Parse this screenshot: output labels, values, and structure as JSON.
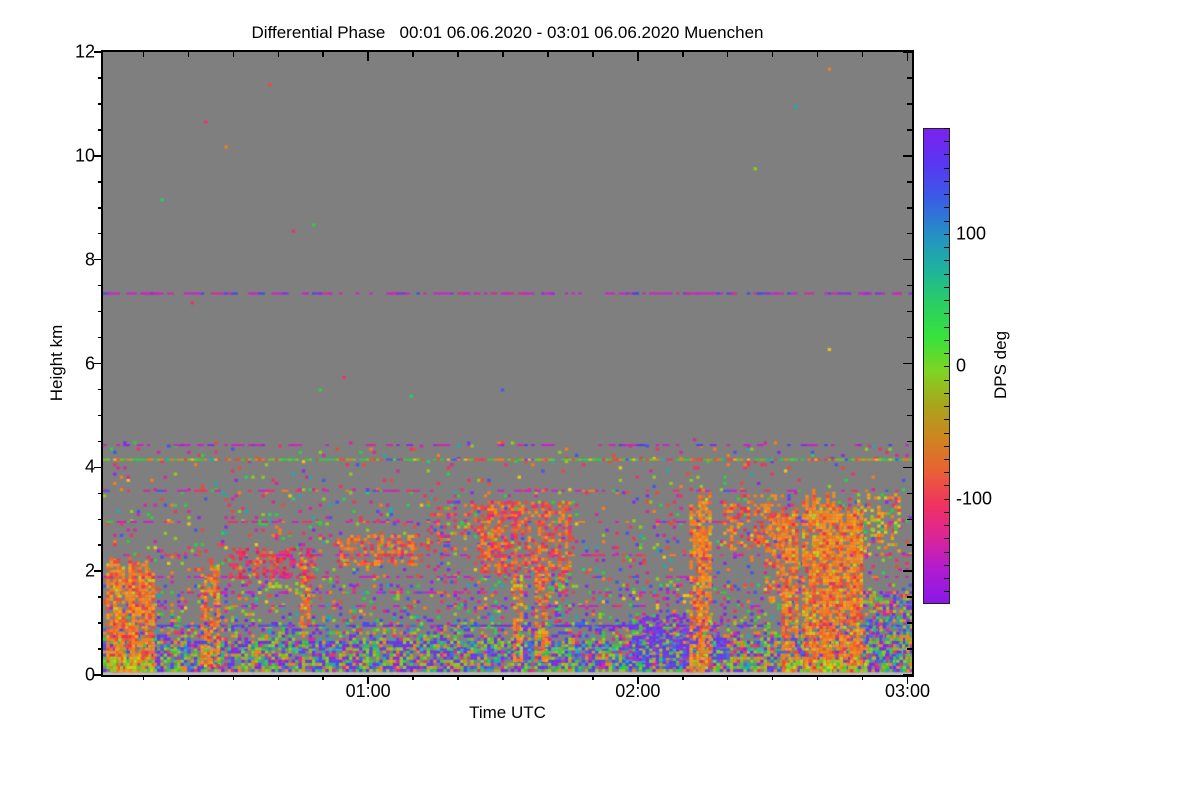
{
  "chart_data": {
    "type": "heatmap",
    "title": "Differential Phase   00:01 06.06.2020 - 03:01 06.06.2020 Muenchen",
    "xlabel": "Time UTC",
    "ylabel": "Height km",
    "time_start": "00:01 06.06.2020",
    "time_end": "03:01 06.06.2020",
    "station": "Muenchen",
    "x_span": 180,
    "x_ticks": [
      {
        "label": "01:00",
        "t": 59
      },
      {
        "label": "02:00",
        "t": 119
      },
      {
        "label": "03:00",
        "t": 179
      }
    ],
    "x_minor_start": 9,
    "x_minor_step": 10,
    "y_max": 12,
    "y_ticks": [
      0,
      2,
      4,
      6,
      8,
      10,
      12
    ],
    "y_major_step": 2,
    "y_minor_step": 0.5,
    "grid_on": false,
    "plot_bg": "#7F7F7F",
    "seed": 7,
    "grid_cols": 240,
    "grid_rows": 200,
    "colorbar": {
      "label": "DPS deg",
      "position": "right",
      "value_range": [
        -178,
        180
      ],
      "minor_step": 10,
      "major_ticks": [
        {
          "label": "100",
          "value": 100
        },
        {
          "label": "0",
          "value": 0
        },
        {
          "label": "-100",
          "value": -100
        }
      ],
      "gradient": [
        [
          0.0,
          "#7B22EE"
        ],
        [
          0.07,
          "#5A35F2"
        ],
        [
          0.145,
          "#3A5BE6"
        ],
        [
          0.226,
          "#2492C4"
        ],
        [
          0.3,
          "#1FB49A"
        ],
        [
          0.37,
          "#2ACF62"
        ],
        [
          0.44,
          "#38E23C"
        ],
        [
          0.511,
          "#7FD424"
        ],
        [
          0.58,
          "#A8A61C"
        ],
        [
          0.655,
          "#CE8420"
        ],
        [
          0.72,
          "#E96233"
        ],
        [
          0.797,
          "#F03064"
        ],
        [
          0.86,
          "#DC2596"
        ],
        [
          0.93,
          "#B01BD0"
        ],
        [
          1.0,
          "#8A18E8"
        ]
      ]
    },
    "palettes": {
      "rain": [
        [
          "#F57E1E",
          5
        ],
        [
          "#EF8F28",
          4
        ],
        [
          "#F2642E",
          3
        ],
        [
          "#F0A21C",
          2
        ],
        [
          "#EE4A3A",
          2
        ],
        [
          "#E83158",
          1
        ],
        [
          "#BFCE1E",
          1
        ]
      ],
      "yellowgreen": [
        [
          "#9ACD21",
          4
        ],
        [
          "#6FD428",
          3
        ],
        [
          "#C8D21E",
          2
        ],
        [
          "#3BD23B",
          2
        ],
        [
          "#EFA21C",
          1
        ]
      ],
      "low": [
        [
          "#7B2BE8",
          5
        ],
        [
          "#5544EE",
          3
        ],
        [
          "#3D6BE0",
          2
        ],
        [
          "#22AAB0",
          2
        ],
        [
          "#33CC44",
          3
        ],
        [
          "#8FCC22",
          4
        ],
        [
          "#AAAA22",
          2
        ],
        [
          "#EE8822",
          2
        ],
        [
          "#D22AA0",
          2
        ],
        [
          "#EE3366",
          1
        ],
        [
          "#F57E1E",
          1
        ]
      ],
      "mixlow": [
        [
          "#8A2BE8",
          3
        ],
        [
          "#4455EE",
          2
        ],
        [
          "#22AAB0",
          1
        ],
        [
          "#33CC44",
          2
        ],
        [
          "#8FCC22",
          2
        ],
        [
          "#EE3366",
          2
        ],
        [
          "#D22AA0",
          2
        ],
        [
          "#F57E1E",
          2
        ],
        [
          "#EE4A3A",
          1
        ],
        [
          "#F2C21E",
          1
        ]
      ],
      "mix": [
        [
          "#EE3366",
          3
        ],
        [
          "#D22AA0",
          3
        ],
        [
          "#F57E1E",
          2
        ],
        [
          "#EE4A3A",
          2
        ],
        [
          "#33CC44",
          2
        ],
        [
          "#8FCC22",
          2
        ],
        [
          "#22AAB0",
          1
        ],
        [
          "#4455EE",
          2
        ],
        [
          "#8A2BE8",
          2
        ],
        [
          "#F2C21E",
          1
        ],
        [
          "#2ACF62",
          1
        ]
      ],
      "pink": [
        [
          "#EE3366",
          4
        ],
        [
          "#E8225E",
          3
        ],
        [
          "#F0433C",
          2
        ],
        [
          "#D22AA0",
          2
        ],
        [
          "#F0622F",
          1
        ],
        [
          "#EF8F28",
          1
        ]
      ],
      "orange": [
        [
          "#F57E1E",
          4
        ],
        [
          "#EF8F28",
          3
        ],
        [
          "#F2642E",
          3
        ],
        [
          "#EE4A3A",
          2
        ],
        [
          "#E83158",
          1
        ],
        [
          "#F0A21C",
          1
        ],
        [
          "#EE3366",
          1
        ]
      ],
      "pinkorange": [
        [
          "#EE3366",
          3
        ],
        [
          "#F2642E",
          2
        ],
        [
          "#EE4A3A",
          2
        ],
        [
          "#D22AA0",
          2
        ],
        [
          "#F57E1E",
          2
        ],
        [
          "#8FCC22",
          1
        ],
        [
          "#33CC44",
          1
        ],
        [
          "#4455EE",
          1
        ]
      ],
      "orangepink": [
        [
          "#F57E1E",
          4
        ],
        [
          "#F2642E",
          3
        ],
        [
          "#EE4A3A",
          3
        ],
        [
          "#EE3366",
          2
        ],
        [
          "#EF8F28",
          2
        ],
        [
          "#E83158",
          1
        ],
        [
          "#D22AA0",
          1
        ]
      ],
      "orangeyellow": [
        [
          "#F57E1E",
          3
        ],
        [
          "#EFA21C",
          3
        ],
        [
          "#C8D21E",
          2
        ],
        [
          "#8FCC22",
          2
        ],
        [
          "#EE4A3A",
          1
        ],
        [
          "#33CC44",
          1
        ]
      ],
      "purpdense": [
        [
          "#7B2BE8",
          5
        ],
        [
          "#5544EE",
          4
        ],
        [
          "#8833EE",
          3
        ],
        [
          "#3D6BE0",
          2
        ],
        [
          "#33CC44",
          1
        ],
        [
          "#8FCC22",
          1
        ],
        [
          "#D22AA0",
          1
        ]
      ],
      "magenta": [
        [
          "#CC22CC",
          5
        ],
        [
          "#8A2BE8",
          2
        ],
        [
          "#D22AA0",
          2
        ],
        [
          "#4444EE",
          1
        ]
      ],
      "magmix": [
        [
          "#CC22CC",
          4
        ],
        [
          "#D22AA0",
          2
        ],
        [
          "#EE3366",
          2
        ],
        [
          "#33CC44",
          1
        ],
        [
          "#4455EE",
          1
        ],
        [
          "#F57E1E",
          1
        ]
      ],
      "redmag": [
        [
          "#EE3366",
          3
        ],
        [
          "#CC22CC",
          3
        ],
        [
          "#EE4A3A",
          2
        ],
        [
          "#D22AA0",
          2
        ],
        [
          "#F57E1E",
          1
        ]
      ],
      "greenline": [
        [
          "#33CC44",
          4
        ],
        [
          "#6FCC22",
          3
        ],
        [
          "#EE4A3A",
          2
        ],
        [
          "#F57E1E",
          2
        ],
        [
          "#4455EE",
          1
        ],
        [
          "#F2C21E",
          1
        ],
        [
          "#EE3366",
          1
        ],
        [
          "#22AAB0",
          1
        ]
      ],
      "purpline": [
        [
          "#7B2BE8",
          4
        ],
        [
          "#5544EE",
          3
        ],
        [
          "#3D6BE0",
          2
        ],
        [
          "#D22AA0",
          1
        ],
        [
          "#33CC44",
          1
        ]
      ],
      "cyanline": [
        [
          "#22BBCC",
          3
        ],
        [
          "#4455EE",
          2
        ],
        [
          "#33CC44",
          2
        ],
        [
          "#8A2BE8",
          2
        ],
        [
          "#8FCC22",
          1
        ]
      ]
    },
    "features": [
      {
        "kind": "strip",
        "t0": 0,
        "t1": 180,
        "h0": 0,
        "h1": 0.055,
        "color": "#BDBDBD"
      },
      {
        "kind": "speckle",
        "t0": 0,
        "t1": 180,
        "h0": 0.055,
        "h1": 0.6,
        "density": 0.8,
        "palette": "low"
      },
      {
        "kind": "speckle",
        "t0": 0,
        "t1": 180,
        "h0": 0.6,
        "h1": 1.2,
        "density": 0.55,
        "palette": "low",
        "fade": true
      },
      {
        "kind": "speckle",
        "t0": 0,
        "t1": 180,
        "h0": 1.2,
        "h1": 1.7,
        "density": 0.18,
        "palette": "mixlow"
      },
      {
        "kind": "speckle",
        "t0": 0,
        "t1": 180,
        "h0": 1.7,
        "h1": 2.7,
        "density": 0.11,
        "palette": "mix"
      },
      {
        "kind": "speckle",
        "t0": 0,
        "t1": 180,
        "h0": 2.7,
        "h1": 3.6,
        "density": 0.09,
        "palette": "mix"
      },
      {
        "kind": "speckle",
        "t0": 0,
        "t1": 180,
        "h0": 3.6,
        "h1": 4.45,
        "density": 0.05,
        "palette": "mix"
      },
      {
        "kind": "speckle",
        "t0": 0,
        "t1": 180,
        "h0": 4.5,
        "h1": 11.9,
        "density": 0.0005,
        "palette": "mix"
      },
      {
        "kind": "hline",
        "t0": 0,
        "t1": 180,
        "h": 7.32,
        "density": 0.5,
        "palette": "magenta"
      },
      {
        "kind": "hline",
        "t0": 0,
        "t1": 180,
        "h": 4.4,
        "density": 0.3,
        "palette": "magenta"
      },
      {
        "kind": "hline",
        "t0": 0,
        "t1": 180,
        "h": 4.12,
        "density": 0.85,
        "palette": "greenline"
      },
      {
        "kind": "hline",
        "t0": 0,
        "t1": 180,
        "h": 3.52,
        "density": 0.25,
        "palette": "magmix"
      },
      {
        "kind": "hline",
        "t0": 0,
        "t1": 180,
        "h": 2.92,
        "density": 0.28,
        "palette": "magmix"
      },
      {
        "kind": "hline",
        "t0": 0,
        "t1": 180,
        "h": 2.28,
        "density": 0.32,
        "palette": "redmag"
      },
      {
        "kind": "hline",
        "t0": 0,
        "t1": 180,
        "h": 1.86,
        "density": 0.25,
        "palette": "magmix"
      },
      {
        "kind": "hline",
        "t0": 0,
        "t1": 180,
        "h": 1.56,
        "density": 0.28,
        "palette": "magmix"
      },
      {
        "kind": "hline",
        "t0": 0,
        "t1": 180,
        "h": 1.3,
        "density": 0.25,
        "palette": "magmix"
      },
      {
        "kind": "hline",
        "t0": 0,
        "t1": 180,
        "h": 0.92,
        "density": 0.5,
        "palette": "purpline"
      },
      {
        "kind": "hline",
        "t0": 0,
        "t1": 180,
        "h": 0.46,
        "density": 0.5,
        "palette": "cyanline"
      },
      {
        "kind": "speckle",
        "t0": 28,
        "t1": 47,
        "h0": 1.85,
        "h1": 2.4,
        "density": 0.4,
        "palette": "pink"
      },
      {
        "kind": "speckle",
        "t0": 36,
        "t1": 44,
        "h0": 1.55,
        "h1": 1.78,
        "density": 0.35,
        "palette": "yellowgreen"
      },
      {
        "kind": "speckle",
        "t0": 52,
        "t1": 70,
        "h0": 2.1,
        "h1": 2.65,
        "density": 0.5,
        "palette": "orange"
      },
      {
        "kind": "speckle",
        "t0": 72,
        "t1": 92,
        "h0": 2.4,
        "h1": 3.35,
        "density": 0.3,
        "palette": "pinkorange"
      },
      {
        "kind": "speckle",
        "t0": 84,
        "t1": 104,
        "h0": 1.9,
        "h1": 3.3,
        "density": 0.5,
        "palette": "orangepink"
      },
      {
        "kind": "speckle",
        "t0": 96,
        "t1": 104,
        "h0": 1.0,
        "h1": 1.95,
        "density": 0.28,
        "palette": "mix"
      },
      {
        "kind": "speckle",
        "t0": 138,
        "t1": 151,
        "h0": 2.4,
        "h1": 3.45,
        "density": 0.45,
        "palette": "orange"
      },
      {
        "kind": "speckle",
        "t0": 167,
        "t1": 177,
        "h0": 2.3,
        "h1": 3.45,
        "density": 0.35,
        "palette": "orangeyellow"
      },
      {
        "kind": "speckle",
        "t0": 117,
        "t1": 129,
        "h0": 0.15,
        "h1": 1.15,
        "density": 0.5,
        "palette": "purpdense"
      },
      {
        "kind": "speckle",
        "t0": 129,
        "t1": 137,
        "h0": 0.3,
        "h1": 1.05,
        "density": 0.4,
        "palette": "purpdense"
      },
      {
        "kind": "speckle",
        "t0": 169,
        "t1": 180,
        "h0": 0.055,
        "h1": 1.6,
        "density": 0.5,
        "palette": "low"
      },
      {
        "kind": "streaks",
        "t0": 0,
        "t1": 11.5,
        "h0": 0.05,
        "h1": 2.35,
        "count": 4,
        "w": 2.4,
        "density": 0.75,
        "palette": "rain"
      },
      {
        "kind": "speckle",
        "t0": 0,
        "t1": 12,
        "h0": 0.055,
        "h1": 0.3,
        "density": 0.5,
        "palette": "yellowgreen"
      },
      {
        "kind": "streaks",
        "t0": 20.5,
        "t1": 26,
        "h0": 0.15,
        "h1": 2.25,
        "count": 2,
        "w": 1.7,
        "density": 0.6,
        "palette": "rain"
      },
      {
        "kind": "streaks",
        "t0": 43,
        "t1": 47,
        "h0": 0.9,
        "h1": 2.3,
        "count": 1,
        "w": 1.6,
        "density": 0.6,
        "palette": "rain"
      },
      {
        "kind": "streaks",
        "t0": 91,
        "t1": 99,
        "h0": 0.25,
        "h1": 2.1,
        "count": 2,
        "w": 1.5,
        "density": 0.55,
        "palette": "rain"
      },
      {
        "kind": "streaks",
        "t0": 130,
        "t1": 134.5,
        "h0": 0.05,
        "h1": 3.7,
        "count": 2,
        "w": 1.4,
        "density": 0.65,
        "palette": "rain"
      },
      {
        "kind": "streaks",
        "t0": 146,
        "t1": 152,
        "h0": 1.4,
        "h1": 3.3,
        "count": 2,
        "w": 1.3,
        "density": 0.4,
        "palette": "rain"
      },
      {
        "kind": "streaks",
        "t0": 151.5,
        "t1": 170,
        "h0": 0.05,
        "h1": 3.65,
        "count": 6,
        "w": 2.0,
        "density": 0.78,
        "palette": "rain"
      },
      {
        "kind": "speckle",
        "t0": 152,
        "t1": 170,
        "h0": 0.055,
        "h1": 0.25,
        "density": 0.5,
        "palette": "yellowgreen"
      }
    ]
  }
}
